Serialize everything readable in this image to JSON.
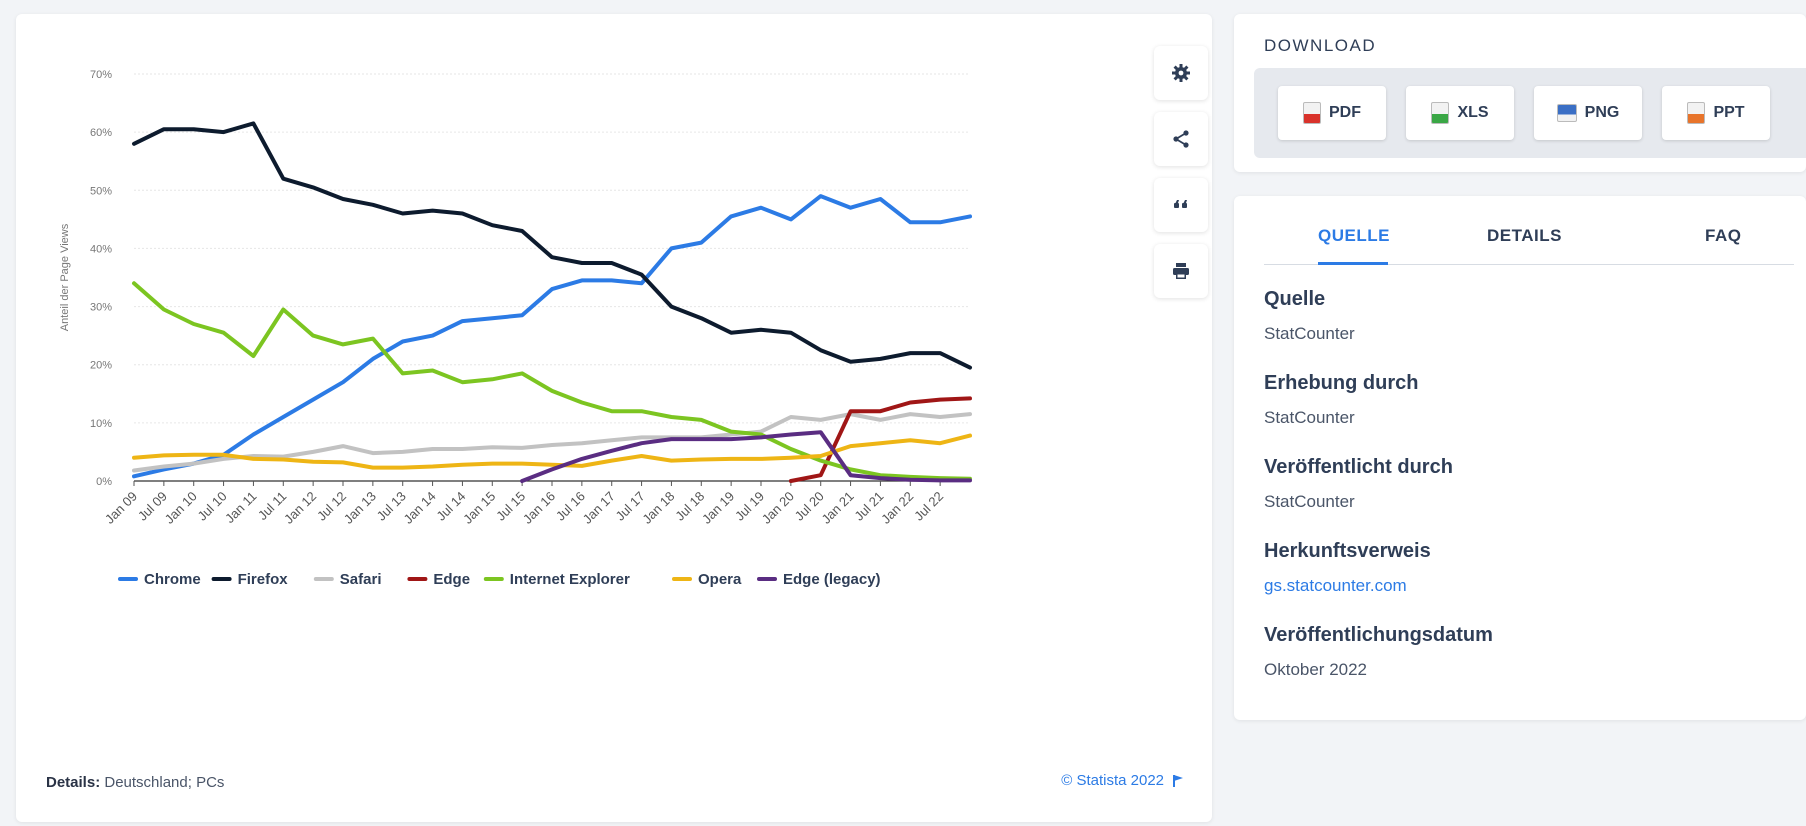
{
  "toolbar": {
    "settings": "gear-icon",
    "share": "share-icon",
    "cite": "quote-icon",
    "print": "print-icon"
  },
  "details_note": {
    "label": "Details:",
    "value": "Deutschland; PCs"
  },
  "copyright": "© Statista 2022",
  "download": {
    "title": "DOWNLOAD",
    "buttons": [
      {
        "label": "PDF",
        "color": "#d9322b"
      },
      {
        "label": "XLS",
        "color": "#3aa745"
      },
      {
        "label": "PNG",
        "color": "#3b6fc5"
      },
      {
        "label": "PPT",
        "color": "#e8742b"
      }
    ]
  },
  "tabs": {
    "source": "QUELLE",
    "details": "DETAILS",
    "faq": "FAQ"
  },
  "info": {
    "source_label": "Quelle",
    "source_value": "StatCounter",
    "survey_label": "Erhebung durch",
    "survey_value": "StatCounter",
    "published_by_label": "Veröffentlicht durch",
    "published_by_value": "StatCounter",
    "origin_label": "Herkunftsverweis",
    "origin_value": "gs.statcounter.com",
    "date_label": "Veröffentlichungsdatum",
    "date_value": "Oktober 2022"
  },
  "chart_data": {
    "type": "line",
    "ylabel": "Anteil der Page Views",
    "ylim": [
      0,
      70
    ],
    "yticks": [
      "0%",
      "10%",
      "20%",
      "30%",
      "40%",
      "50%",
      "60%",
      "70%"
    ],
    "xticks": [
      "Jan 09",
      "Jul 09",
      "Jan 10",
      "Jul 10",
      "Jan 11",
      "Jul 11",
      "Jan 12",
      "Jul 12",
      "Jan 13",
      "Jul 13",
      "Jan 14",
      "Jul 14",
      "Jan 15",
      "Jul 15",
      "Jan 16",
      "Jul 16",
      "Jan 17",
      "Jul 17",
      "Jan 18",
      "Jul 18",
      "Jan 19",
      "Jul 19",
      "Jan 20",
      "Jul 20",
      "Jan 21",
      "Jul 21",
      "Jan 22",
      "Jul 22"
    ],
    "x": [
      "Jan 09",
      "Jul 09",
      "Jan 10",
      "Jul 10",
      "Jan 11",
      "Jul 11",
      "Jan 12",
      "Jul 12",
      "Jan 13",
      "Jul 13",
      "Jan 14",
      "Jul 14",
      "Jan 15",
      "Jul 15",
      "Jan 16",
      "Jul 16",
      "Jan 17",
      "Jul 17",
      "Jan 18",
      "Jul 18",
      "Jan 19",
      "Jul 19",
      "Jan 20",
      "Jul 20",
      "Jan 21",
      "Jul 21",
      "Jan 22",
      "Jul 22",
      "Sep 22"
    ],
    "grid": true,
    "legend_position": "bottom",
    "series": [
      {
        "name": "Chrome",
        "color": "#2c7be5",
        "values": [
          0.8,
          2,
          3,
          4.5,
          8,
          11,
          14,
          17,
          21,
          24,
          25,
          27.5,
          28,
          28.5,
          33,
          34.5,
          34.5,
          34,
          40,
          41,
          45.5,
          47,
          45,
          49,
          47,
          48.5,
          44.5,
          44.5,
          45.5
        ]
      },
      {
        "name": "Firefox",
        "color": "#0d1b2e",
        "values": [
          58,
          60.5,
          60.5,
          60,
          61.5,
          52,
          50.5,
          48.5,
          47.5,
          46,
          46.5,
          46,
          44,
          43,
          38.5,
          37.5,
          37.5,
          35.5,
          30,
          28,
          25.5,
          26,
          25.5,
          22.5,
          20.5,
          21,
          22,
          22,
          19.5
        ]
      },
      {
        "name": "Safari",
        "color": "#c2c2c2",
        "values": [
          1.8,
          2.5,
          3,
          3.8,
          4.3,
          4.2,
          5,
          6,
          4.8,
          5,
          5.5,
          5.5,
          5.8,
          5.7,
          6.2,
          6.5,
          7,
          7.5,
          7.5,
          7.5,
          8,
          8.5,
          11,
          10.5,
          11.5,
          10.5,
          11.5,
          11,
          11.5
        ]
      },
      {
        "name": "Edge",
        "color": "#a01616",
        "values": [
          null,
          null,
          null,
          null,
          null,
          null,
          null,
          null,
          null,
          null,
          null,
          null,
          null,
          null,
          null,
          null,
          null,
          null,
          null,
          null,
          null,
          null,
          0,
          1,
          12,
          12,
          13.5,
          14,
          14.2
        ]
      },
      {
        "name": "Internet Explorer",
        "color": "#7cc521",
        "values": [
          34,
          29.5,
          27,
          25.5,
          21.5,
          29.5,
          25,
          23.5,
          24.5,
          18.5,
          19,
          17,
          17.5,
          18.5,
          15.5,
          13.5,
          12,
          12,
          11,
          10.5,
          8.5,
          8,
          5.5,
          3.5,
          2,
          1,
          0.7,
          0.5,
          0.4
        ]
      },
      {
        "name": "Opera",
        "color": "#eeb515",
        "values": [
          4,
          4.4,
          4.5,
          4.5,
          3.8,
          3.7,
          3.3,
          3.2,
          2.3,
          2.3,
          2.5,
          2.8,
          3,
          3,
          2.8,
          2.6,
          3.5,
          4.3,
          3.5,
          3.7,
          3.8,
          3.8,
          4,
          4.3,
          6,
          6.5,
          7,
          6.5,
          7.8
        ]
      },
      {
        "name": "Edge (legacy)",
        "color": "#5a2d82",
        "values": [
          null,
          null,
          null,
          null,
          null,
          null,
          null,
          null,
          null,
          null,
          null,
          null,
          null,
          0,
          2,
          3.8,
          5.2,
          6.5,
          7.2,
          7.2,
          7.2,
          7.5,
          8,
          8.4,
          1,
          0.5,
          0.2,
          0.1,
          0.1
        ]
      }
    ]
  }
}
